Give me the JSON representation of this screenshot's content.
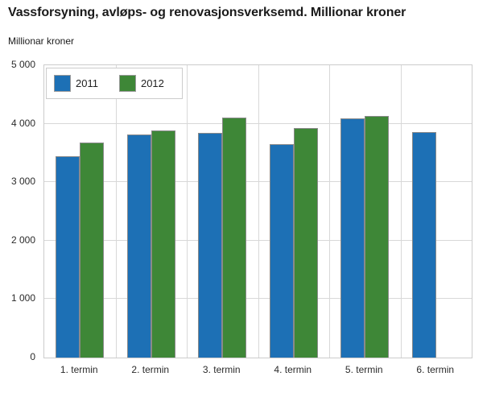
{
  "chart": {
    "title": "Vassforsyning, avløps- og renovasjonsverksemd. Millionar kroner",
    "subtitle": "Millionar kroner"
  },
  "chart_data": {
    "type": "bar",
    "categories": [
      "1. termin",
      "2. termin",
      "3. termin",
      "4. termin",
      "5. termin",
      "6. termin"
    ],
    "series": [
      {
        "name": "2011",
        "color": "#1d70b5",
        "values": [
          3440,
          3810,
          3850,
          3650,
          4090,
          3860
        ]
      },
      {
        "name": "2012",
        "color": "#3e8737",
        "values": [
          3680,
          3890,
          4110,
          3920,
          4130,
          null
        ]
      }
    ],
    "ylim": [
      0,
      5000
    ],
    "yticks": [
      {
        "value": 0,
        "label": "0"
      },
      {
        "value": 1000,
        "label": "1 000"
      },
      {
        "value": 2000,
        "label": "2 000"
      },
      {
        "value": 3000,
        "label": "3 000"
      },
      {
        "value": 4000,
        "label": "4 000"
      },
      {
        "value": 5000,
        "label": "5 000"
      }
    ],
    "grid": true,
    "legend_position": "top-left",
    "colors": {
      "grid": "#d8d8d8",
      "plot_border": "#cccccc",
      "bar_stroke": "#8a8a8a",
      "text": "#2b2b2b"
    }
  }
}
